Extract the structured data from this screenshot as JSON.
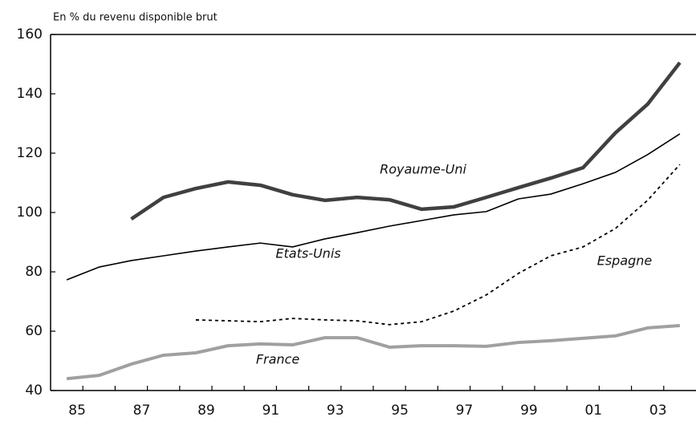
{
  "chart_data": {
    "type": "line",
    "y_axis_label": "En % du revenu disponible brut",
    "categories": [
      "85",
      null,
      "87",
      null,
      "89",
      null,
      "91",
      null,
      "93",
      null,
      "95",
      null,
      "97",
      null,
      "99",
      null,
      "01",
      null,
      "03",
      null
    ],
    "ylim": [
      40,
      160
    ],
    "yticks": [
      40,
      60,
      80,
      100,
      120,
      140,
      160
    ],
    "series": [
      {
        "name": "Royaume-Uni",
        "color": "#404040",
        "width": 4.5,
        "dashed": false,
        "values": [
          null,
          null,
          97.8,
          105.1,
          108.1,
          110.3,
          109.2,
          106,
          104.1,
          105.1,
          104.3,
          101.1,
          101.9,
          105.1,
          108.4,
          111.6,
          115.1,
          126.8,
          136.5,
          150.5
        ]
      },
      {
        "name": "Etats-Unis",
        "color": "#000000",
        "width": 1.6,
        "dashed": false,
        "values": [
          77.3,
          81.6,
          83.8,
          85.4,
          87,
          88.4,
          89.7,
          88.4,
          91.1,
          93.2,
          95.4,
          97.3,
          99.2,
          100.3,
          104.6,
          106.2,
          109.7,
          113.5,
          119.5,
          126.5
        ]
      },
      {
        "name": "Espagne",
        "color": "#000000",
        "width": 1.8,
        "dashed": true,
        "values": [
          null,
          null,
          null,
          null,
          63.8,
          63.5,
          63.2,
          64.3,
          63.8,
          63.5,
          62.2,
          63.2,
          66.8,
          72.2,
          79.5,
          85.4,
          88.4,
          94.6,
          104.1,
          116.2
        ]
      },
      {
        "name": "France",
        "color": "#a0a0a0",
        "width": 4,
        "dashed": false,
        "values": [
          44,
          45.1,
          48.9,
          51.9,
          52.7,
          55.1,
          55.7,
          55.4,
          57.8,
          57.8,
          54.6,
          55.1,
          55.1,
          54.9,
          56.2,
          56.8,
          57.6,
          58.4,
          61.1,
          61.9
        ]
      }
    ]
  }
}
